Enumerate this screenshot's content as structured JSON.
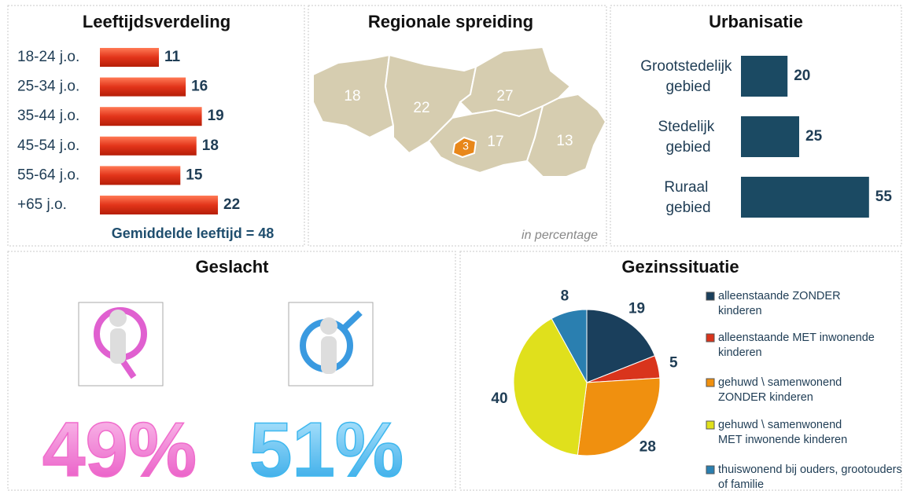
{
  "chart_data": [
    {
      "type": "hbar",
      "title": "Leeftijdsverdeling",
      "categories": [
        "18-24 j.o.",
        "25-34 j.o.",
        "35-44 j.o.",
        "45-54 j.o.",
        "55-64 j.o.",
        "+65 j.o."
      ],
      "values": [
        11,
        16,
        19,
        18,
        15,
        22
      ],
      "color": "#e2341a",
      "annotation": "Gemiddelde leeftijd = 48"
    },
    {
      "type": "map",
      "title": "Regionale spreiding",
      "values": [
        18,
        22,
        27,
        17,
        13,
        3
      ],
      "color": "#d6cdb0",
      "highlight_color": "#e8871a",
      "annotation": "in percentage"
    },
    {
      "type": "hbar",
      "title": "Urbanisatie",
      "categories": [
        "Grootstedelijk gebied",
        "Stedelijk gebied",
        "Ruraal gebied"
      ],
      "values": [
        20,
        25,
        55
      ],
      "color": "#1b4a63"
    },
    {
      "type": "pictogram",
      "title": "Geslacht",
      "values": [
        49,
        51
      ],
      "value_labels": [
        "49%",
        "51%"
      ],
      "colors": [
        "#f06ccc",
        "#3fb8ef"
      ]
    },
    {
      "type": "pie",
      "title": "Gezinssituatie",
      "categories": [
        "alleenstaande ZONDER kinderen",
        "alleenstaande MET inwonende kinderen",
        "gehuwd \\ samenwonend ZONDER kinderen",
        "gehuwd \\ samenwonend MET inwonende kinderen",
        "thuiswonend bij ouders, grootouders of familie"
      ],
      "values": [
        19,
        5,
        28,
        40,
        8
      ],
      "colors": [
        "#1a3f5c",
        "#d9341c",
        "#f0900f",
        "#e0e01c",
        "#2a7fb0"
      ]
    }
  ]
}
